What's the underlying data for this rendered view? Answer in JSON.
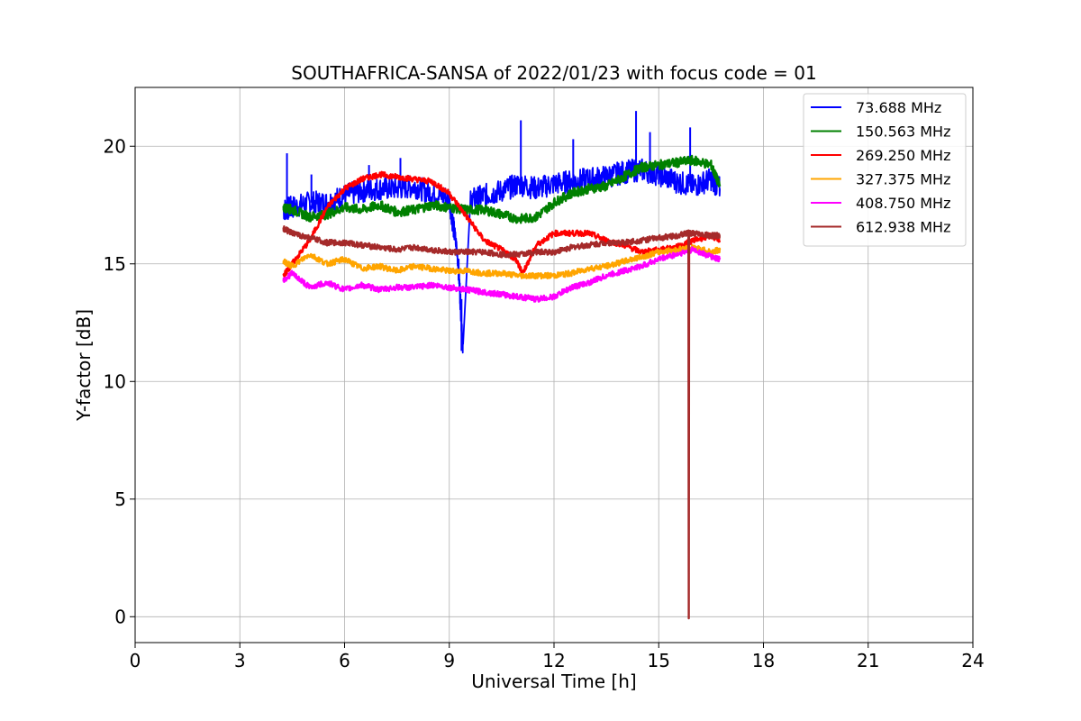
{
  "chart_data": {
    "type": "line",
    "title": "SOUTHAFRICA-SANSA of 2022/01/23 with focus code = 01",
    "xlabel": "Universal Time [h]",
    "ylabel": "Y-factor [dB]",
    "xlim": [
      0,
      24
    ],
    "ylim": [
      -1.1,
      22.5
    ],
    "xticks": [
      0,
      3,
      6,
      9,
      12,
      15,
      18,
      21,
      24
    ],
    "yticks": [
      0,
      5,
      10,
      15,
      20
    ],
    "xtick_labels": [
      "0",
      "3",
      "6",
      "9",
      "12",
      "15",
      "18",
      "21",
      "24"
    ],
    "ytick_labels": [
      "0",
      "5",
      "10",
      "15",
      "20"
    ],
    "grid": true,
    "legend_position": "top-right",
    "series": [
      {
        "name": " 73.688 MHz",
        "color": "#0000ff",
        "x": [
          4.25,
          4.5,
          5,
          5.5,
          6,
          6.5,
          7,
          7.5,
          8,
          8.5,
          9,
          9.25,
          9.4,
          9.6,
          10,
          10.5,
          11,
          11.5,
          12,
          12.5,
          13,
          13.5,
          14,
          14.5,
          15,
          15.5,
          16,
          16.5,
          16.75
        ],
        "y": [
          17.3,
          17.4,
          17.6,
          17.6,
          17.9,
          18.1,
          18.2,
          18.2,
          18.3,
          18.0,
          17.8,
          15.2,
          11.3,
          17.7,
          17.9,
          18.1,
          18.4,
          18.2,
          18.4,
          18.5,
          18.6,
          18.7,
          18.9,
          19.0,
          18.8,
          18.5,
          18.3,
          18.6,
          18.2
        ],
        "spikes": [
          [
            4.35,
            19.7
          ],
          [
            5.05,
            18.8
          ],
          [
            6.7,
            19.2
          ],
          [
            7.6,
            19.5
          ],
          [
            11.05,
            21.1
          ],
          [
            12.55,
            20.3
          ],
          [
            14.35,
            21.5
          ],
          [
            14.75,
            20.6
          ],
          [
            15.9,
            20.8
          ],
          [
            9.35,
            13.5
          ]
        ]
      },
      {
        "name": "150.563 MHz",
        "color": "#008000",
        "x": [
          4.25,
          4.5,
          5,
          5.5,
          6,
          6.5,
          7,
          7.5,
          8,
          8.5,
          9,
          9.5,
          10,
          10.5,
          11,
          11.5,
          12,
          12.5,
          13,
          13.5,
          14,
          14.5,
          15,
          15.5,
          16,
          16.5,
          16.75
        ],
        "y": [
          17.4,
          17.3,
          17.0,
          17.1,
          17.4,
          17.3,
          17.5,
          17.2,
          17.3,
          17.5,
          17.4,
          17.3,
          17.3,
          17.1,
          16.9,
          17.0,
          17.6,
          18.0,
          18.2,
          18.3,
          18.7,
          19.1,
          19.2,
          19.3,
          19.4,
          19.2,
          18.3
        ]
      },
      {
        "name": "269.250 MHz",
        "color": "#ff0000",
        "x": [
          4.25,
          4.5,
          5,
          5.5,
          6,
          6.5,
          7,
          7.5,
          8,
          8.5,
          9,
          9.5,
          10,
          10.5,
          10.9,
          11.1,
          11.5,
          12,
          12.5,
          13,
          13.5,
          14,
          14.5,
          15,
          15.5,
          16,
          16.5,
          16.75
        ],
        "y": [
          14.5,
          15.0,
          16.0,
          17.4,
          18.2,
          18.6,
          18.8,
          18.7,
          18.6,
          18.5,
          18.0,
          17.0,
          16.0,
          15.6,
          15.2,
          14.6,
          15.8,
          16.3,
          16.3,
          16.3,
          16.0,
          15.8,
          15.5,
          15.6,
          15.7,
          16.0,
          16.2,
          16.0
        ]
      },
      {
        "name": "327.375 MHz",
        "color": "#ffa500",
        "x": [
          4.25,
          4.5,
          5,
          5.5,
          6,
          6.5,
          7,
          7.5,
          8,
          8.5,
          9,
          9.5,
          10,
          10.5,
          11,
          11.5,
          12,
          12.5,
          13,
          13.5,
          14,
          14.5,
          15,
          15.5,
          16,
          16.5,
          16.75
        ],
        "y": [
          15.1,
          14.9,
          15.4,
          15.0,
          15.2,
          14.8,
          14.9,
          14.7,
          14.9,
          14.8,
          14.7,
          14.7,
          14.6,
          14.6,
          14.5,
          14.5,
          14.5,
          14.6,
          14.8,
          14.9,
          15.1,
          15.3,
          15.5,
          15.6,
          15.7,
          15.5,
          15.6
        ]
      },
      {
        "name": "408.750 MHz",
        "color": "#ff00ff",
        "x": [
          4.25,
          4.5,
          5,
          5.5,
          6,
          6.5,
          7,
          7.5,
          8,
          8.5,
          9,
          9.5,
          10,
          10.5,
          11,
          11.5,
          12,
          12.5,
          13,
          13.5,
          14,
          14.5,
          15,
          15.5,
          16,
          16.5,
          16.75
        ],
        "y": [
          14.3,
          14.6,
          14.0,
          14.2,
          13.9,
          14.1,
          13.9,
          14.0,
          14.0,
          14.1,
          14.0,
          13.9,
          13.8,
          13.7,
          13.6,
          13.5,
          13.6,
          14.0,
          14.2,
          14.5,
          14.7,
          14.9,
          15.2,
          15.4,
          15.6,
          15.3,
          15.2
        ]
      },
      {
        "name": "612.938 MHz",
        "color": "#a52a2a",
        "x": [
          4.25,
          4.5,
          5,
          5.5,
          6,
          6.5,
          7,
          7.5,
          8,
          8.5,
          9,
          9.5,
          10,
          10.5,
          11,
          11.5,
          12,
          12.5,
          13,
          13.5,
          14,
          14.5,
          15,
          15.5,
          15.85,
          15.86,
          15.87,
          16,
          16.5,
          16.75
        ],
        "y": [
          16.5,
          16.3,
          16.1,
          15.9,
          15.9,
          15.8,
          15.7,
          15.6,
          15.7,
          15.6,
          15.5,
          15.5,
          15.5,
          15.4,
          15.4,
          15.5,
          15.5,
          15.7,
          15.8,
          15.9,
          15.9,
          16.0,
          16.1,
          16.2,
          16.3,
          0.0,
          16.3,
          16.3,
          16.2,
          16.2
        ]
      }
    ]
  }
}
